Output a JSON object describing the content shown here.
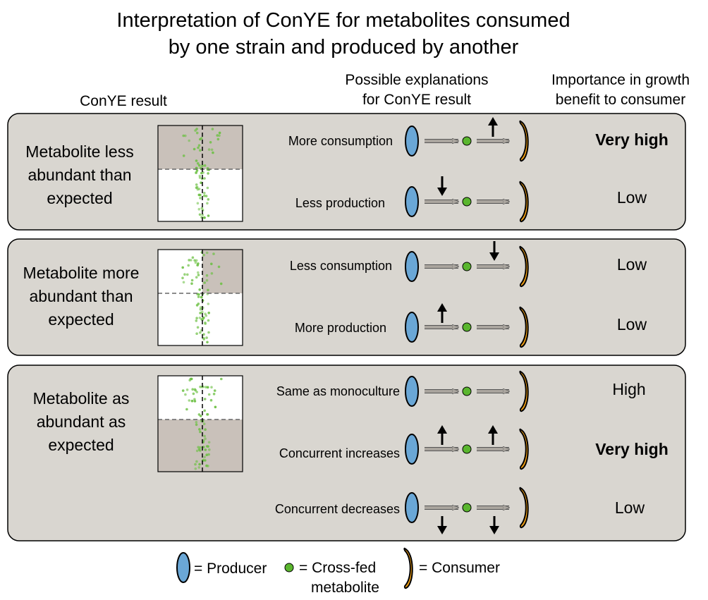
{
  "title": {
    "line1": "Interpretation of ConYE for metabolites consumed",
    "line2": "by one strain and produced by another"
  },
  "headers": {
    "conye_result": "ConYE result",
    "explanations_line1": "Possible explanations",
    "explanations_line2": "for ConYE result",
    "importance_line1": "Importance in growth",
    "importance_line2": "benefit to consumer"
  },
  "colors": {
    "panel_fill": "#d9d6d0",
    "panel_stroke": "#000000",
    "shade": "#c9c1ba",
    "producer": "#6aa7d6",
    "consumer": "#f2a013",
    "metabolite": "#5ab62e",
    "arrow": "#aaa59e",
    "dots": "#6cc043"
  },
  "panels": [
    {
      "label_lines": [
        "Metabolite less",
        "abundant than",
        "expected"
      ],
      "shaded_region": "top",
      "rows": [
        {
          "explanation": "More consumption",
          "importance": "Very high",
          "bold": true,
          "cues": {
            "production": "none",
            "consumption": "up"
          }
        },
        {
          "explanation": "Less production",
          "importance": "Low",
          "bold": false,
          "cues": {
            "production": "down",
            "consumption": "none"
          }
        }
      ]
    },
    {
      "label_lines": [
        "Metabolite more",
        "abundant than",
        "expected"
      ],
      "shaded_region": "top-right",
      "rows": [
        {
          "explanation": "Less consumption",
          "importance": "Low",
          "bold": false,
          "cues": {
            "production": "none",
            "consumption": "down"
          }
        },
        {
          "explanation": "More production",
          "importance": "Low",
          "bold": false,
          "cues": {
            "production": "up",
            "consumption": "none"
          }
        }
      ]
    },
    {
      "label_lines": [
        "Metabolite as",
        "abundant as",
        "expected"
      ],
      "shaded_region": "bottom",
      "rows": [
        {
          "explanation": "Same as monoculture",
          "importance": "High",
          "bold": false,
          "cues": {
            "production": "none",
            "consumption": "none"
          }
        },
        {
          "explanation": "Concurrent increases",
          "importance": "Very high",
          "bold": true,
          "cues": {
            "production": "up",
            "consumption": "up"
          }
        },
        {
          "explanation": "Concurrent decreases",
          "importance": "Low",
          "bold": false,
          "cues": {
            "production": "down",
            "consumption": "down"
          }
        }
      ]
    }
  ],
  "legend": {
    "producer": "= Producer",
    "metabolite_line1": "= Cross-fed",
    "metabolite_line2": "metabolite",
    "consumer": "= Consumer"
  }
}
